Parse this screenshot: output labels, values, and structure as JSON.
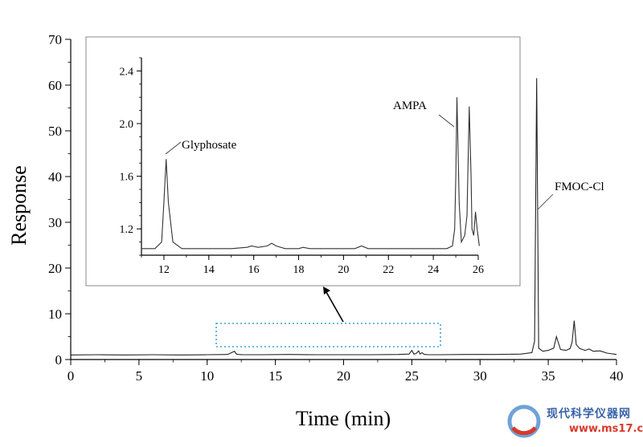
{
  "chart_data": [
    {
      "type": "line",
      "xlabel": "Time (min)",
      "ylabel": "Response",
      "xlim": [
        0,
        40
      ],
      "ylim": [
        0,
        70
      ],
      "xticks": [
        0,
        5,
        10,
        15,
        20,
        25,
        30,
        35,
        40
      ],
      "yticks": [
        0,
        10,
        20,
        30,
        40,
        50,
        60,
        70
      ],
      "series": [
        {
          "x": [
            0,
            2,
            4,
            6,
            8,
            10,
            11.5,
            12.0,
            12.15,
            12.3,
            12.6,
            14,
            16,
            18,
            20,
            22,
            24,
            24.8,
            25.0,
            25.15,
            25.3,
            25.5,
            25.6,
            25.75,
            25.9,
            26.05,
            26.2,
            27,
            29,
            31,
            33,
            33.8,
            34.0,
            34.15,
            34.3,
            34.6,
            35.0,
            35.4,
            35.6,
            35.9,
            36.3,
            36.6,
            36.75,
            36.9,
            37.05,
            37.3,
            37.7,
            38.0,
            38.3,
            38.8,
            39.3,
            40
          ],
          "y": [
            1.0,
            1.05,
            1.0,
            1.05,
            1.0,
            1.05,
            1.1,
            1.8,
            1.2,
            1.1,
            1.05,
            1.05,
            1.1,
            1.05,
            1.05,
            1.05,
            1.1,
            1.2,
            2.0,
            1.2,
            1.3,
            1.9,
            1.2,
            1.5,
            1.1,
            1.1,
            1.05,
            1.05,
            1.1,
            1.1,
            1.2,
            1.5,
            4.0,
            61.5,
            2.5,
            1.8,
            2.0,
            2.5,
            5.0,
            2.2,
            2.0,
            2.4,
            3.8,
            8.5,
            3.3,
            2.4,
            2.0,
            2.3,
            1.8,
            1.9,
            1.4,
            1.1
          ]
        }
      ],
      "annotations": [
        {
          "text": "FMOC-Cl",
          "x": 34.2,
          "y": 31
        }
      ]
    },
    {
      "type": "line",
      "inset": true,
      "xlim": [
        11,
        26
      ],
      "ylim": [
        1.0,
        2.5
      ],
      "xticks": [
        12,
        14,
        16,
        18,
        20,
        22,
        24,
        26
      ],
      "yticks": [
        1.2,
        1.6,
        2.0,
        2.4
      ],
      "series": [
        {
          "x": [
            11,
            11.6,
            11.9,
            12.0,
            12.1,
            12.2,
            12.4,
            12.8,
            14,
            15,
            15.7,
            15.9,
            16.2,
            16.6,
            16.8,
            17.0,
            17.4,
            18.0,
            18.2,
            18.5,
            19.5,
            20.5,
            20.8,
            21.1,
            22,
            23,
            24,
            24.6,
            24.85,
            24.95,
            25.0,
            25.05,
            25.15,
            25.25,
            25.4,
            25.5,
            25.6,
            25.68,
            25.72,
            25.8,
            25.88,
            25.95,
            26.05
          ],
          "y": [
            1.05,
            1.05,
            1.1,
            1.4,
            1.73,
            1.4,
            1.1,
            1.05,
            1.05,
            1.05,
            1.06,
            1.07,
            1.06,
            1.07,
            1.09,
            1.07,
            1.05,
            1.05,
            1.06,
            1.05,
            1.05,
            1.05,
            1.07,
            1.05,
            1.05,
            1.05,
            1.05,
            1.05,
            1.07,
            1.2,
            1.6,
            2.2,
            1.4,
            1.1,
            1.15,
            1.3,
            2.13,
            1.6,
            1.2,
            1.15,
            1.33,
            1.2,
            1.07
          ]
        }
      ],
      "annotations": [
        {
          "text": "Glyphosate",
          "x": 12.15,
          "y": 1.73
        },
        {
          "text": "AMPA",
          "x": 25.0,
          "y": 2.2
        }
      ]
    }
  ],
  "watermark": {
    "name": "现代科学仪器网",
    "url": "www.ms17.cn"
  }
}
